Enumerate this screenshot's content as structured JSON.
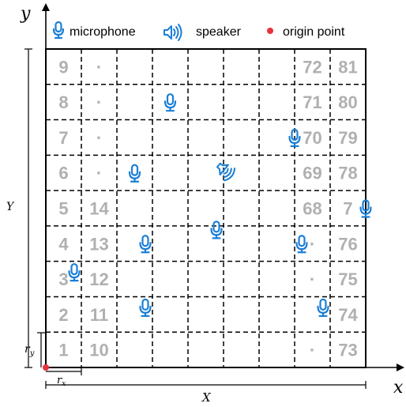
{
  "legend": {
    "microphone_label": "microphone",
    "speaker_label": "speaker",
    "origin_label": "origin point"
  },
  "axes": {
    "x_label": "x",
    "y_label": "y",
    "X_label": "X",
    "Y_label": "Y",
    "rx_label": "r",
    "rx_sub": "x",
    "ry_label": "r",
    "ry_sub": "y"
  },
  "grid": {
    "columns": 9,
    "rows": 9,
    "cells": [
      {
        "col": 0,
        "row": 8,
        "text": "9"
      },
      {
        "col": 0,
        "row": 7,
        "text": "8"
      },
      {
        "col": 0,
        "row": 6,
        "text": "7"
      },
      {
        "col": 0,
        "row": 5,
        "text": "6"
      },
      {
        "col": 0,
        "row": 4,
        "text": "5"
      },
      {
        "col": 0,
        "row": 3,
        "text": "4"
      },
      {
        "col": 0,
        "row": 2,
        "text": "3"
      },
      {
        "col": 0,
        "row": 1,
        "text": "2"
      },
      {
        "col": 0,
        "row": 0,
        "text": "1"
      },
      {
        "col": 1,
        "row": 8,
        "text": "·"
      },
      {
        "col": 1,
        "row": 7,
        "text": "·"
      },
      {
        "col": 1,
        "row": 6,
        "text": "·"
      },
      {
        "col": 1,
        "row": 5,
        "text": "·"
      },
      {
        "col": 1,
        "row": 4,
        "text": "14"
      },
      {
        "col": 1,
        "row": 3,
        "text": "13"
      },
      {
        "col": 1,
        "row": 2,
        "text": "12"
      },
      {
        "col": 1,
        "row": 1,
        "text": "11"
      },
      {
        "col": 1,
        "row": 0,
        "text": "10"
      },
      {
        "col": 7,
        "row": 8,
        "text": "72"
      },
      {
        "col": 7,
        "row": 7,
        "text": "71"
      },
      {
        "col": 7,
        "row": 6,
        "text": "70"
      },
      {
        "col": 7,
        "row": 5,
        "text": "69"
      },
      {
        "col": 7,
        "row": 4,
        "text": "68"
      },
      {
        "col": 7,
        "row": 3,
        "text": "·"
      },
      {
        "col": 7,
        "row": 2,
        "text": "·"
      },
      {
        "col": 7,
        "row": 1,
        "text": ""
      },
      {
        "col": 7,
        "row": 0,
        "text": "·"
      },
      {
        "col": 8,
        "row": 8,
        "text": "81"
      },
      {
        "col": 8,
        "row": 7,
        "text": "80"
      },
      {
        "col": 8,
        "row": 6,
        "text": "79"
      },
      {
        "col": 8,
        "row": 5,
        "text": "78"
      },
      {
        "col": 8,
        "row": 4,
        "text": "7"
      },
      {
        "col": 8,
        "row": 3,
        "text": "76"
      },
      {
        "col": 8,
        "row": 2,
        "text": "75"
      },
      {
        "col": 8,
        "row": 1,
        "text": "74"
      },
      {
        "col": 8,
        "row": 0,
        "text": "73"
      }
    ],
    "microphones": [
      {
        "col": 3,
        "row": 7
      },
      {
        "col": 6.5,
        "row": 6
      },
      {
        "col": 2,
        "row": 5
      },
      {
        "col": 8.5,
        "row": 4
      },
      {
        "col": 4.3,
        "row": 3.4
      },
      {
        "col": 2.3,
        "row": 3
      },
      {
        "col": 6.7,
        "row": 3
      },
      {
        "col": 0.3,
        "row": 2.2
      },
      {
        "col": 2.3,
        "row": 1.2
      },
      {
        "col": 7.3,
        "row": 1.2
      }
    ],
    "speaker": {
      "col": 4.5,
      "row": 5.1
    }
  },
  "colors": {
    "accent": "#1a7fd6",
    "origin": "#e8323c",
    "numbers": "#b0b0b0",
    "grid": "#000000"
  }
}
